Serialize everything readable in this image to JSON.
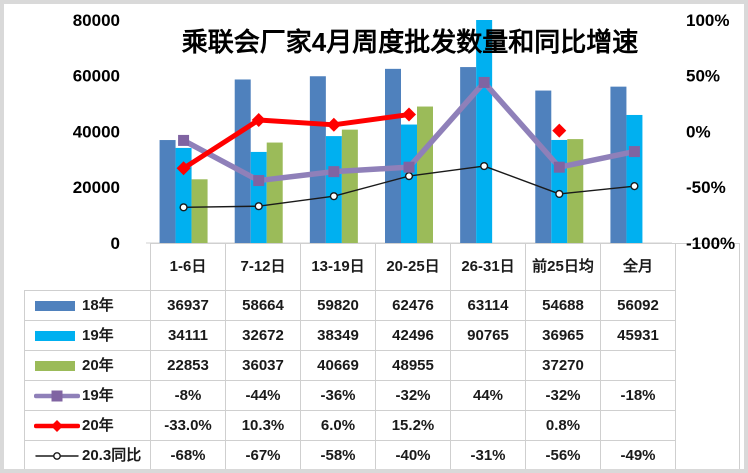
{
  "frame": {
    "border_color": "#d9d9d9",
    "background": "#ffffff"
  },
  "chart_data": {
    "type": "combo-bar-line",
    "title": "乘联会厂家4月周度批发数量和同比增速",
    "categories": [
      "1-6日",
      "7-12日",
      "13-19日",
      "20-25日",
      "26-31日",
      "前25日均",
      "全月"
    ],
    "left_axis": {
      "min": 0,
      "max": 80000,
      "ticks": [
        "80000",
        "60000",
        "40000",
        "20000",
        "0"
      ],
      "tick_values": [
        80000,
        60000,
        40000,
        20000,
        0
      ]
    },
    "right_axis": {
      "min": -100,
      "max": 100,
      "ticks": [
        "100%",
        "50%",
        "0%",
        "-50%",
        "-100%"
      ],
      "tick_values": [
        100,
        50,
        0,
        -50,
        -100
      ]
    },
    "grid": "off",
    "legend_position": "table-left-column",
    "bar_series": [
      {
        "name": "18年",
        "color": "#4F81BD",
        "values": [
          36937,
          58664,
          59820,
          62476,
          63114,
          54688,
          56092
        ]
      },
      {
        "name": "19年",
        "color": "#00B0F0",
        "values": [
          34111,
          32672,
          38349,
          42496,
          90765,
          36965,
          45931
        ]
      },
      {
        "name": "20年",
        "color": "#9BBB59",
        "values": [
          22853,
          36037,
          40669,
          48955,
          null,
          37270,
          null
        ]
      }
    ],
    "line_series": [
      {
        "name": "20.3同比",
        "color": "#1a1a1a",
        "line_color": "#1a1a1a",
        "marker": "circle",
        "width": 1.4,
        "values": [
          -68,
          -67,
          -58,
          -40,
          -31,
          -56,
          -49
        ]
      },
      {
        "name": "19年",
        "color": "#8064A2",
        "line_color": "#8F80B9",
        "marker": "square",
        "width": 5.5,
        "values": [
          -8,
          -44,
          -36,
          -32,
          44,
          -32,
          -18
        ]
      },
      {
        "name": "20年",
        "color": "#FF0000",
        "line_color": "#FF0000",
        "marker": "diamond",
        "width": 5,
        "values": [
          -33,
          10.3,
          6,
          15.2,
          null,
          0.8,
          null
        ]
      }
    ]
  },
  "table": {
    "rows": [
      {
        "label": "18年",
        "swatch": "bar",
        "color": "#4F81BD",
        "cells": [
          "36937",
          "58664",
          "59820",
          "62476",
          "63114",
          "54688",
          "56092"
        ]
      },
      {
        "label": "19年",
        "swatch": "bar",
        "color": "#00B0F0",
        "cells": [
          "34111",
          "32672",
          "38349",
          "42496",
          "90765",
          "36965",
          "45931"
        ]
      },
      {
        "label": "20年",
        "swatch": "bar",
        "color": "#9BBB59",
        "cells": [
          "22853",
          "36037",
          "40669",
          "48955",
          "",
          "37270",
          ""
        ]
      },
      {
        "label": "19年",
        "swatch": "line-square",
        "color": "#8064A2",
        "line_color": "#8F80B9",
        "cells": [
          "-8%",
          "-44%",
          "-36%",
          "-32%",
          "44%",
          "-32%",
          "-18%"
        ]
      },
      {
        "label": "20年",
        "swatch": "line-diamond",
        "color": "#FF0000",
        "line_color": "#FF0000",
        "cells": [
          "-33.0%",
          "10.3%",
          "6.0%",
          "15.2%",
          "",
          "0.8%",
          ""
        ]
      },
      {
        "label": "20.3同比",
        "swatch": "line-circle",
        "color": "#1a1a1a",
        "line_color": "#1a1a1a",
        "cells": [
          "-68%",
          "-67%",
          "-58%",
          "-40%",
          "-31%",
          "-56%",
          "-49%"
        ]
      }
    ]
  }
}
